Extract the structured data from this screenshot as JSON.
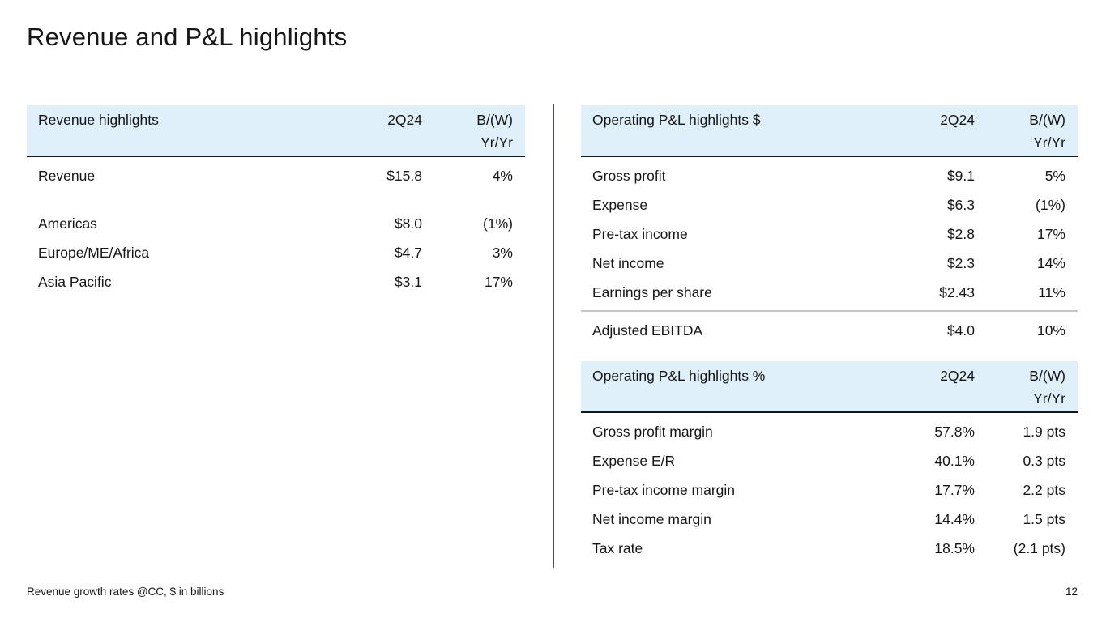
{
  "slide": {
    "title": "Revenue and P&L highlights",
    "footnote": "Revenue growth rates @CC, $ in billions",
    "page_number": "12"
  },
  "colors": {
    "header_background": "#dff0fa",
    "text": "#161616",
    "header_underline": "#161616",
    "gray_separator": "#c6c6c6"
  },
  "revenue_table": {
    "title": "Revenue highlights",
    "col_period": "2Q24",
    "col_change_line1": "B/(W)",
    "col_change_line2": "Yr/Yr",
    "rows": [
      {
        "label": "Revenue",
        "value": "$15.8",
        "change": "4%"
      },
      {
        "label": "Americas",
        "value": "$8.0",
        "change": "(1%)"
      },
      {
        "label": "Europe/ME/Africa",
        "value": "$4.7",
        "change": "3%"
      },
      {
        "label": "Asia Pacific",
        "value": "$3.1",
        "change": "17%"
      }
    ]
  },
  "pnl_dollar_table": {
    "title": "Operating P&L highlights $",
    "col_period": "2Q24",
    "col_change_line1": "B/(W)",
    "col_change_line2": "Yr/Yr",
    "rows": [
      {
        "label": "Gross profit",
        "value": "$9.1",
        "change": "5%"
      },
      {
        "label": "Expense",
        "value": "$6.3",
        "change": "(1%)"
      },
      {
        "label": "Pre-tax income",
        "value": "$2.8",
        "change": "17%"
      },
      {
        "label": "Net income",
        "value": "$2.3",
        "change": "14%"
      },
      {
        "label": "Earnings per share",
        "value": "$2.43",
        "change": "11%"
      }
    ],
    "ebitda_row": {
      "label": "Adjusted EBITDA",
      "value": "$4.0",
      "change": "10%"
    }
  },
  "pnl_percent_table": {
    "title": "Operating P&L highlights %",
    "col_period": "2Q24",
    "col_change_line1": "B/(W)",
    "col_change_line2": "Yr/Yr",
    "rows": [
      {
        "label": "Gross profit margin",
        "value": "57.8%",
        "change": "1.9 pts"
      },
      {
        "label": "Expense E/R",
        "value": "40.1%",
        "change": "0.3 pts"
      },
      {
        "label": "Pre-tax income margin",
        "value": "17.7%",
        "change": "2.2 pts"
      },
      {
        "label": "Net income margin",
        "value": "14.4%",
        "change": "1.5 pts"
      },
      {
        "label": "Tax rate",
        "value": "18.5%",
        "change": "(2.1 pts)"
      }
    ]
  }
}
